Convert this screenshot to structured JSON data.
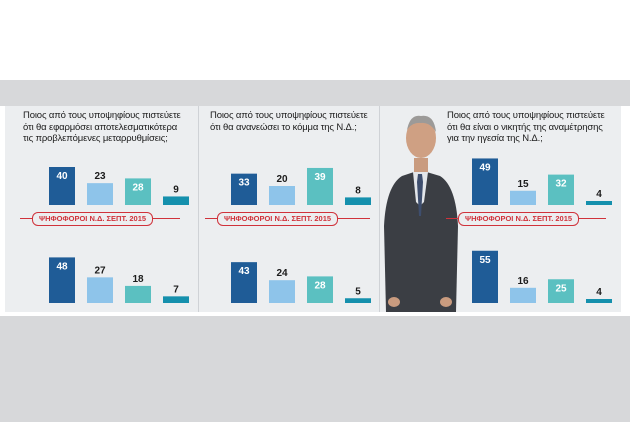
{
  "colors": {
    "series": [
      "#1f5c97",
      "#8ec4ea",
      "#5bc0c1",
      "#1590ad"
    ],
    "background": "#eceef0",
    "ribbon": "#d0323b"
  },
  "panels": [
    {
      "title_lines": [
        "Ποιος από τους υποψηφίους πιστεύετε",
        "ότι θα εφαρμόσει αποτελεσματικότερα",
        "τις προβλεπόμενες μεταρρυθμίσεις;"
      ],
      "ribbon": "ΨΗΦΟΦΟΡΟΙ Ν.Δ. ΣΕΠΤ. 2015"
    },
    {
      "title_lines": [
        "Ποιος από τους υποψηφίους πιστεύετε",
        "ότι θα ανανεώσει το κόμμα της Ν.Δ.;"
      ],
      "ribbon": "ΨΗΦΟΦΟΡΟΙ Ν.Δ. ΣΕΠΤ. 2015"
    },
    {
      "title_lines": [
        "Ποιος από τους υποψηφίους πιστεύετε",
        "ότι θα είναι ο νικητής της αναμέτρησης",
        "για την ηγεσία της Ν.Δ.;"
      ],
      "ribbon": "ΨΗΦΟΦΟΡΟΙ Ν.Δ. ΣΕΠΤ. 2015"
    }
  ],
  "chart_data": [
    {
      "type": "bar",
      "panel": 1,
      "group": "all",
      "values": [
        40,
        23,
        28,
        9
      ]
    },
    {
      "type": "bar",
      "panel": 1,
      "group": "ΨΗΦΟΦΟΡΟΙ Ν.Δ. ΣΕΠΤ. 2015",
      "values": [
        48,
        27,
        18,
        7
      ]
    },
    {
      "type": "bar",
      "panel": 2,
      "group": "all",
      "values": [
        33,
        20,
        39,
        8
      ]
    },
    {
      "type": "bar",
      "panel": 2,
      "group": "ΨΗΦΟΦΟΡΟΙ Ν.Δ. ΣΕΠΤ. 2015",
      "values": [
        43,
        24,
        28,
        5
      ]
    },
    {
      "type": "bar",
      "panel": 3,
      "group": "all",
      "values": [
        49,
        15,
        32,
        4
      ]
    },
    {
      "type": "bar",
      "panel": 3,
      "group": "ΨΗΦΟΦΟΡΟΙ Ν.Δ. ΣΕΠΤ. 2015",
      "values": [
        55,
        16,
        25,
        4
      ]
    }
  ]
}
